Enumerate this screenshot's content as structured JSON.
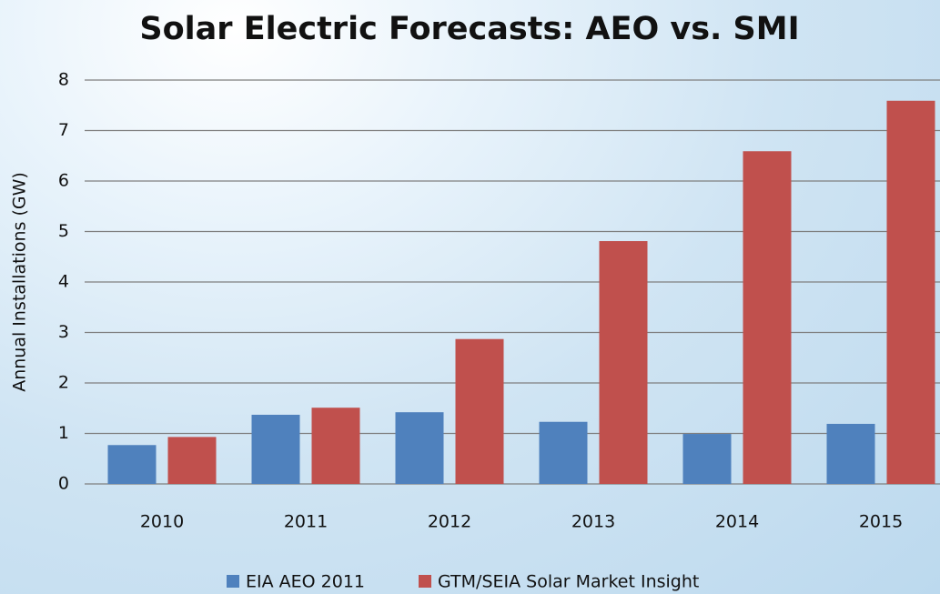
{
  "chart_data": {
    "type": "bar",
    "title": "Solar Electric Forecasts: AEO vs. SMI",
    "y_label": "Annual Installations  (GW)",
    "categories": [
      "2010",
      "2011",
      "2012",
      "2013",
      "2014",
      "2015"
    ],
    "series": [
      {
        "name": "EIA AEO 2011",
        "color": "#4f81bd",
        "values": [
          0.77,
          1.37,
          1.42,
          1.23,
          0.99,
          1.19
        ]
      },
      {
        "name": "GTM/SEIA Solar Market Insight",
        "color": "#c0504d",
        "values": [
          0.93,
          1.51,
          2.87,
          4.81,
          6.59,
          7.59
        ]
      }
    ],
    "ylim": [
      0,
      8
    ],
    "yticks": [
      0,
      1,
      2,
      3,
      4,
      5,
      6,
      7,
      8
    ],
    "grid": true,
    "legend": "bottom"
  }
}
